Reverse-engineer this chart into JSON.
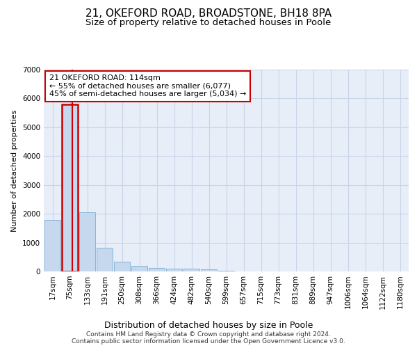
{
  "title1": "21, OKEFORD ROAD, BROADSTONE, BH18 8PA",
  "title2": "Size of property relative to detached houses in Poole",
  "xlabel": "Distribution of detached houses by size in Poole",
  "ylabel": "Number of detached properties",
  "bin_labels": [
    "17sqm",
    "75sqm",
    "133sqm",
    "191sqm",
    "250sqm",
    "308sqm",
    "366sqm",
    "424sqm",
    "482sqm",
    "540sqm",
    "599sqm",
    "657sqm",
    "715sqm",
    "773sqm",
    "831sqm",
    "889sqm",
    "947sqm",
    "1006sqm",
    "1064sqm",
    "1122sqm",
    "1180sqm"
  ],
  "bar_values": [
    1780,
    5800,
    2050,
    820,
    330,
    185,
    110,
    100,
    90,
    65,
    30,
    10,
    5,
    3,
    2,
    1,
    1,
    0,
    0,
    0,
    0
  ],
  "bar_color": "#c5d8ed",
  "bar_edge_color": "#7aafd4",
  "highlight_bar_index": 1,
  "highlight_bar_edge": "#cc0000",
  "annotation_text": "21 OKEFORD ROAD: 114sqm\n← 55% of detached houses are smaller (6,077)\n45% of semi-detached houses are larger (5,034) →",
  "annotation_box_color": "#ffffff",
  "annotation_box_edge": "#cc0000",
  "ylim": [
    0,
    7000
  ],
  "yticks": [
    0,
    1000,
    2000,
    3000,
    4000,
    5000,
    6000,
    7000
  ],
  "grid_color": "#c8d4e8",
  "bg_color": "#e8eef8",
  "footer": "Contains HM Land Registry data © Crown copyright and database right 2024.\nContains public sector information licensed under the Open Government Licence v3.0.",
  "title1_fontsize": 11,
  "title2_fontsize": 9.5,
  "xlabel_fontsize": 9,
  "ylabel_fontsize": 8,
  "tick_fontsize": 7.5,
  "annotation_fontsize": 8,
  "footer_fontsize": 6.5
}
